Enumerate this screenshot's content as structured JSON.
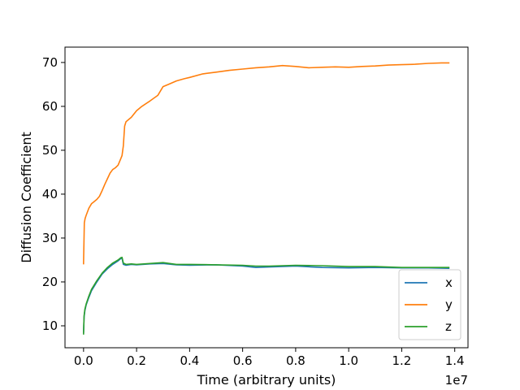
{
  "chart_data": {
    "type": "line",
    "title": "",
    "xlabel": "Time (arbitrary units)",
    "ylabel": "Diffusion Coefficient",
    "x_offset_label": "1e7",
    "xlim": [
      -0.07,
      1.45
    ],
    "ylim": [
      5,
      73.5
    ],
    "x_ticks": [
      0.0,
      0.2,
      0.4,
      0.6,
      0.8,
      1.0,
      1.2,
      1.4
    ],
    "x_tick_labels": [
      "0.0",
      "0.2",
      "0.4",
      "0.6",
      "0.8",
      "1.0",
      "1.2",
      "1.4"
    ],
    "y_ticks": [
      10,
      20,
      30,
      40,
      50,
      60,
      70
    ],
    "y_tick_labels": [
      "10",
      "20",
      "30",
      "40",
      "50",
      "60",
      "70"
    ],
    "grid": false,
    "legend_position": "lower-right",
    "series": [
      {
        "name": "x",
        "color": "#1f77b4",
        "x": [
          0.0,
          0.002,
          0.005,
          0.01,
          0.02,
          0.03,
          0.05,
          0.07,
          0.09,
          0.11,
          0.13,
          0.14,
          0.145,
          0.15,
          0.16,
          0.18,
          0.2,
          0.25,
          0.3,
          0.35,
          0.4,
          0.5,
          0.6,
          0.65,
          0.7,
          0.8,
          0.9,
          1.0,
          1.1,
          1.2,
          1.3,
          1.38
        ],
        "y": [
          8.3,
          12.0,
          13.5,
          14.8,
          16.5,
          18.0,
          20.0,
          21.8,
          23.0,
          24.0,
          24.8,
          25.3,
          25.4,
          24.0,
          23.8,
          24.0,
          23.9,
          24.1,
          24.2,
          23.9,
          23.8,
          23.9,
          23.6,
          23.3,
          23.4,
          23.6,
          23.3,
          23.2,
          23.3,
          23.2,
          23.2,
          23.1
        ]
      },
      {
        "name": "y",
        "color": "#ff7f0e",
        "x": [
          0.0,
          0.003,
          0.006,
          0.01,
          0.015,
          0.02,
          0.03,
          0.04,
          0.05,
          0.06,
          0.07,
          0.08,
          0.09,
          0.1,
          0.11,
          0.12,
          0.13,
          0.14,
          0.145,
          0.15,
          0.155,
          0.16,
          0.17,
          0.18,
          0.2,
          0.22,
          0.25,
          0.28,
          0.3,
          0.32,
          0.35,
          0.38,
          0.4,
          0.45,
          0.5,
          0.55,
          0.6,
          0.65,
          0.7,
          0.75,
          0.8,
          0.85,
          0.9,
          0.95,
          1.0,
          1.05,
          1.1,
          1.15,
          1.2,
          1.25,
          1.3,
          1.35,
          1.38
        ],
        "y": [
          24.0,
          33.5,
          34.5,
          35.2,
          36.0,
          36.8,
          37.8,
          38.3,
          38.8,
          39.5,
          40.8,
          42.2,
          43.5,
          44.8,
          45.6,
          46.0,
          46.6,
          48.0,
          48.8,
          51.0,
          55.5,
          56.5,
          57.0,
          57.5,
          59.0,
          60.0,
          61.2,
          62.5,
          64.5,
          65.0,
          65.8,
          66.3,
          66.6,
          67.4,
          67.8,
          68.2,
          68.5,
          68.8,
          69.0,
          69.3,
          69.1,
          68.8,
          68.9,
          69.0,
          68.9,
          69.1,
          69.2,
          69.4,
          69.5,
          69.6,
          69.8,
          69.9,
          69.9
        ]
      },
      {
        "name": "z",
        "color": "#2ca02c",
        "x": [
          0.0,
          0.002,
          0.005,
          0.01,
          0.02,
          0.03,
          0.05,
          0.07,
          0.09,
          0.11,
          0.13,
          0.14,
          0.145,
          0.15,
          0.16,
          0.18,
          0.2,
          0.25,
          0.3,
          0.35,
          0.4,
          0.5,
          0.6,
          0.65,
          0.7,
          0.8,
          0.9,
          1.0,
          1.1,
          1.2,
          1.3,
          1.38
        ],
        "y": [
          8.0,
          12.3,
          13.8,
          15.0,
          16.8,
          18.3,
          20.3,
          22.0,
          23.3,
          24.3,
          25.0,
          25.5,
          25.6,
          24.3,
          24.0,
          24.1,
          24.0,
          24.2,
          24.4,
          24.0,
          24.0,
          23.9,
          23.8,
          23.6,
          23.6,
          23.8,
          23.7,
          23.5,
          23.5,
          23.3,
          23.3,
          23.3
        ]
      }
    ]
  }
}
